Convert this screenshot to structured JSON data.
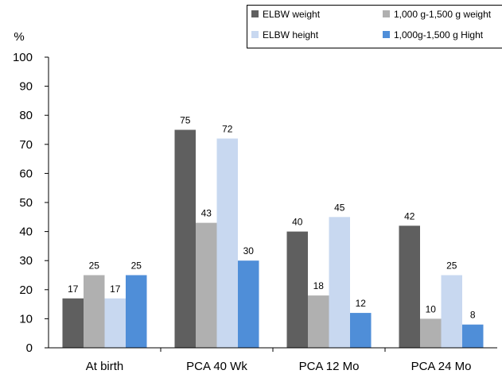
{
  "chart_data": {
    "type": "bar",
    "y_unit": "%",
    "ylim": [
      0,
      100
    ],
    "y_ticks": [
      0,
      10,
      20,
      30,
      40,
      50,
      60,
      70,
      80,
      90,
      100
    ],
    "categories": [
      "At birth",
      "PCA 40 Wk",
      "PCA 12 Mo",
      "PCA 24 Mo"
    ],
    "series": [
      {
        "name": "ELBW weight",
        "color": "#5f5f5f",
        "values": [
          17,
          75,
          40,
          42
        ]
      },
      {
        "name": "1,000 g-1,500 g weight",
        "color": "#b0b0b0",
        "values": [
          25,
          43,
          18,
          10
        ]
      },
      {
        "name": "ELBW height",
        "color": "#c8d8f0",
        "values": [
          17,
          72,
          45,
          25
        ]
      },
      {
        "name": "1,000g-1,500 g Hight",
        "color": "#4f8ed8",
        "values": [
          25,
          30,
          12,
          8
        ]
      }
    ],
    "legend_position": "top-right",
    "grid": false
  }
}
